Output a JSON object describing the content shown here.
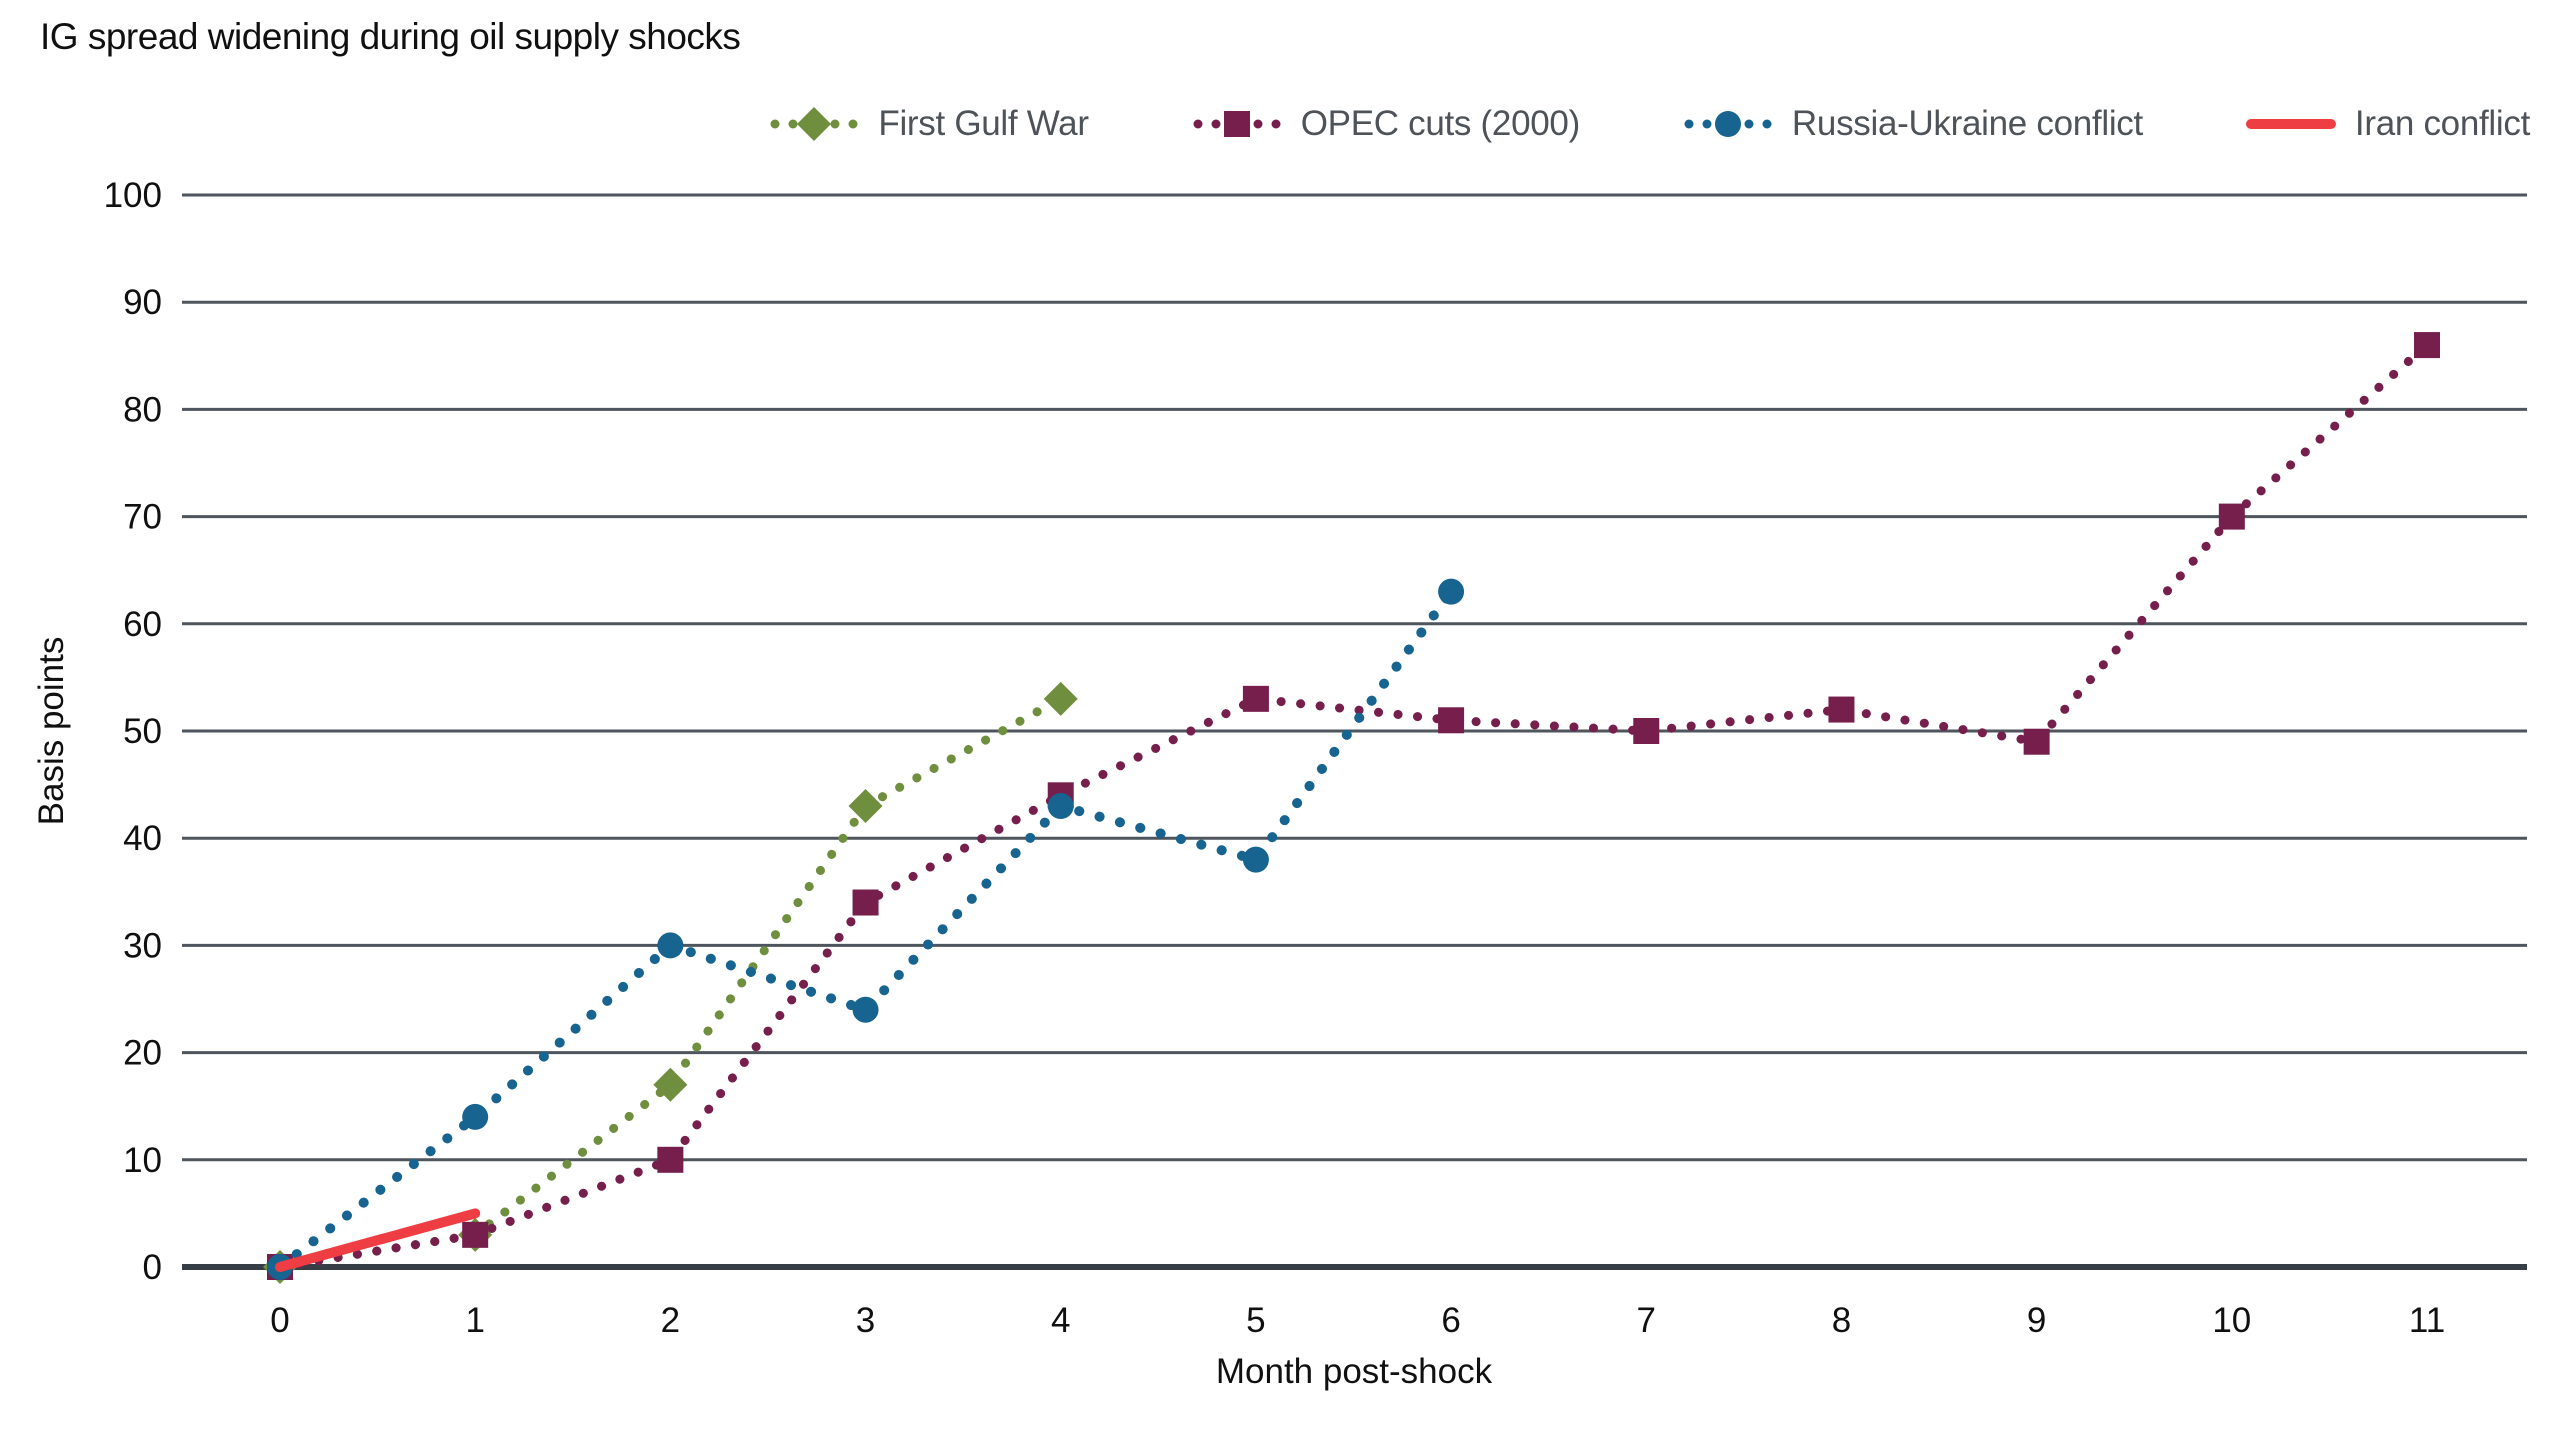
{
  "title": "IG spread widening during oil supply shocks",
  "axes": {
    "xlabel": "Month post-shock",
    "ylabel": "Basis points"
  },
  "style_colors": {
    "first_gulf_war": "#6f8e3e",
    "opec_cuts": "#761e4c",
    "russia_ukraine": "#16648f",
    "iran_conflict": "#ee3e43",
    "gridline": "#4e555c",
    "axis_line": "#363d44",
    "tick_label": "#101010",
    "legend_text": "#4d5358"
  },
  "chart_data": {
    "type": "line",
    "title": "IG spread widening during oil supply shocks",
    "xlabel": "Month post-shock",
    "ylabel": "Basis points",
    "xlim": [
      0,
      11
    ],
    "ylim": [
      0,
      100
    ],
    "x_ticks": [
      0,
      1,
      2,
      3,
      4,
      5,
      6,
      7,
      8,
      9,
      10,
      11
    ],
    "y_ticks": [
      0,
      10,
      20,
      30,
      40,
      50,
      60,
      70,
      80,
      90,
      100
    ],
    "grid": "horizontal",
    "legend_position": "top-right",
    "series": [
      {
        "name": "First Gulf War",
        "color": "#6f8e3e",
        "marker": "diamond",
        "line_style": "dotted",
        "x": [
          0,
          1,
          2,
          3,
          4
        ],
        "values": [
          0,
          3,
          17,
          43,
          53
        ]
      },
      {
        "name": "OPEC cuts (2000)",
        "color": "#761e4c",
        "marker": "square",
        "line_style": "dotted",
        "x": [
          0,
          1,
          2,
          3,
          4,
          5,
          6,
          7,
          8,
          9,
          10,
          11
        ],
        "values": [
          0,
          3,
          10,
          34,
          44,
          53,
          51,
          50,
          52,
          49,
          70,
          86
        ]
      },
      {
        "name": "Russia-Ukraine conflict",
        "color": "#16648f",
        "marker": "circle",
        "line_style": "dotted",
        "x": [
          0,
          1,
          2,
          3,
          4,
          5,
          6
        ],
        "values": [
          0,
          14,
          30,
          24,
          43,
          38,
          63
        ]
      },
      {
        "name": "Iran conflict",
        "color": "#ee3e43",
        "marker": "none",
        "line_style": "solid",
        "x": [
          0,
          1
        ],
        "values": [
          0,
          5
        ]
      }
    ]
  }
}
